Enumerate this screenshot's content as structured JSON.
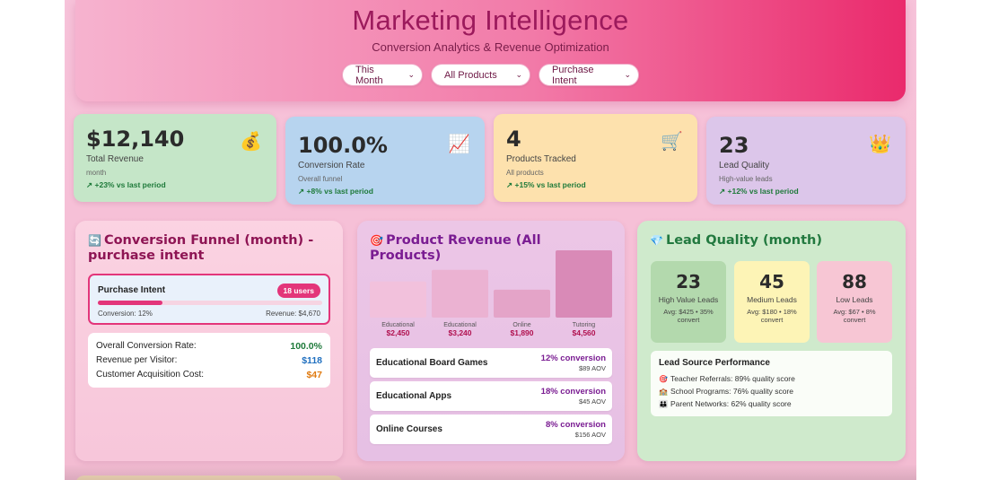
{
  "header": {
    "title": "Marketing Intelligence",
    "subtitle": "Conversion Analytics & Revenue Optimization",
    "filters": [
      {
        "value": "This Month"
      },
      {
        "value": "All Products"
      },
      {
        "value": "Purchase Intent"
      }
    ]
  },
  "kpis": [
    {
      "value": "$12,140",
      "label": "Total Revenue",
      "sub": "month",
      "trend": "+23% vs last period",
      "icon": "money-bag-icon",
      "emoji": "💰"
    },
    {
      "value": "100.0%",
      "label": "Conversion Rate",
      "sub": "Overall funnel",
      "trend": "+8% vs last period",
      "icon": "chart-up-icon",
      "emoji": "📈"
    },
    {
      "value": "4",
      "label": "Products Tracked",
      "sub": "All products",
      "trend": "+15% vs last period",
      "icon": "cart-icon",
      "emoji": "🛒"
    },
    {
      "value": "23",
      "label": "Lead Quality",
      "sub": "High-value leads",
      "trend": "+12% vs last period",
      "icon": "crown-icon",
      "emoji": "👑"
    }
  ],
  "trend_arrow": "↗",
  "funnel": {
    "icon": "🔄",
    "title": "Conversion Funnel (month) - purchase intent",
    "stage": {
      "name": "Purchase Intent",
      "users": "18 users",
      "conversion": "Conversion: 12%",
      "revenue": "Revenue: $4,670",
      "progress": 0.12
    },
    "metrics": [
      {
        "label": "Overall Conversion Rate:",
        "value": "100.0%",
        "color": "#1e7a3a"
      },
      {
        "label": "Revenue per Visitor:",
        "value": "$118",
        "color": "#1f6fbf"
      },
      {
        "label": "Customer Acquisition Cost:",
        "value": "$47",
        "color": "#e07a10"
      }
    ]
  },
  "product_revenue": {
    "icon": "🎯",
    "title": "Product Revenue (All Products)",
    "products": [
      {
        "name": "Educational Board Games",
        "conversion": "12% conversion",
        "aov": "$89 AOV"
      },
      {
        "name": "Educational Apps",
        "conversion": "18% conversion",
        "aov": "$45 AOV"
      },
      {
        "name": "Online Courses",
        "conversion": "8% conversion",
        "aov": "$156 AOV"
      }
    ]
  },
  "chart_data": {
    "type": "bar",
    "categories": [
      "Educational",
      "Educational",
      "Online",
      "Tutoring"
    ],
    "values": [
      2450,
      3240,
      1890,
      4560
    ],
    "value_labels": [
      "$2,450",
      "$3,240",
      "$1,890",
      "$4,560"
    ],
    "title": "",
    "xlabel": "",
    "ylabel": "",
    "ylim": [
      0,
      4560
    ],
    "grid": false
  },
  "lead_quality": {
    "icon": "💎",
    "title": "Lead Quality (month)",
    "tiers": [
      {
        "count": "23",
        "label": "High Value Leads",
        "detail": "Avg: $425 • 35% convert"
      },
      {
        "count": "45",
        "label": "Medium Leads",
        "detail": "Avg: $180 • 18% convert"
      },
      {
        "count": "88",
        "label": "Low Leads",
        "detail": "Avg: $67 • 8% convert"
      }
    ],
    "sources_title": "Lead Source Performance",
    "sources": [
      {
        "emoji": "🎯",
        "text": "Teacher Referrals: 89% quality score"
      },
      {
        "emoji": "🏫",
        "text": "School Programs: 76% quality score"
      },
      {
        "emoji": "👪",
        "text": "Parent Networks: 62% quality score"
      }
    ]
  }
}
